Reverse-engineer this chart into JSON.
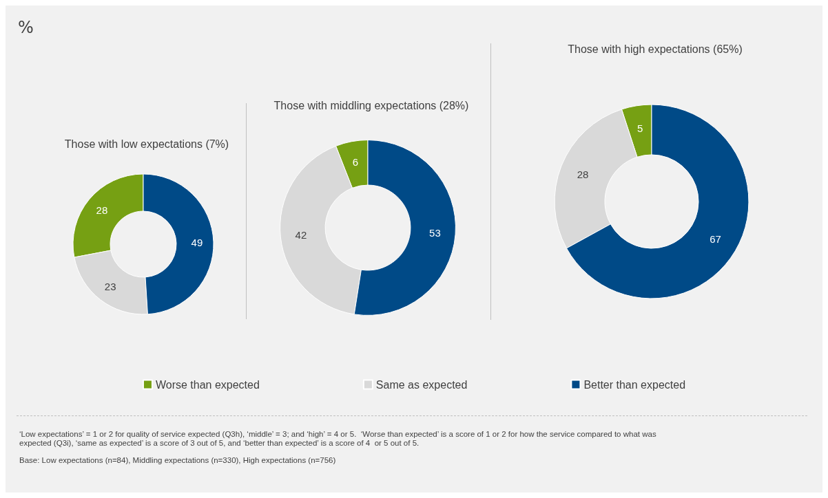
{
  "chart_data": [
    {
      "type": "donut",
      "title": "Those with low expectations (7%)",
      "categories": [
        null,
        null,
        null
      ],
      "values": [
        28,
        23,
        49
      ],
      "colors": [
        "#76a013",
        "#d9d9d9",
        "#004a87"
      ],
      "data_labels": true,
      "legend": false
    },
    {
      "type": "donut",
      "title": "Those with middling expectations (28%)",
      "categories": [
        "Worse than expected",
        "Same as expected",
        "Better than expected"
      ],
      "values": [
        6,
        42,
        53
      ],
      "colors": [
        "#76a013",
        "#d9d9d9",
        "#004a87"
      ],
      "data_labels": true,
      "legend": "bottom",
      "annotations": [
        "%",
        "‘Low expectations’ = 1 or 2 for quality of service expected (Q3h), ‘middle’ = 3; and ‘high’ = 4 or 5.  ‘Worse than expected’ is a score of 1 or 2 for how the service compared to what was expected (Q3i), ‘same as expected’ is a score of 3 out of 5, and ‘better than expected’ is a score of 4  or 5 out of 5.",
        "Base: Low expectations (n=84), Middling expectations (n=330), High expectations (n=756)"
      ]
    },
    {
      "type": "donut",
      "title": "Those with high expectations (65%)",
      "categories": [
        null,
        null,
        null
      ],
      "values": [
        5,
        28,
        67
      ],
      "colors": [
        "#76a013",
        "#d9d9d9",
        "#004a87"
      ],
      "data_labels": true,
      "legend": false
    }
  ]
}
